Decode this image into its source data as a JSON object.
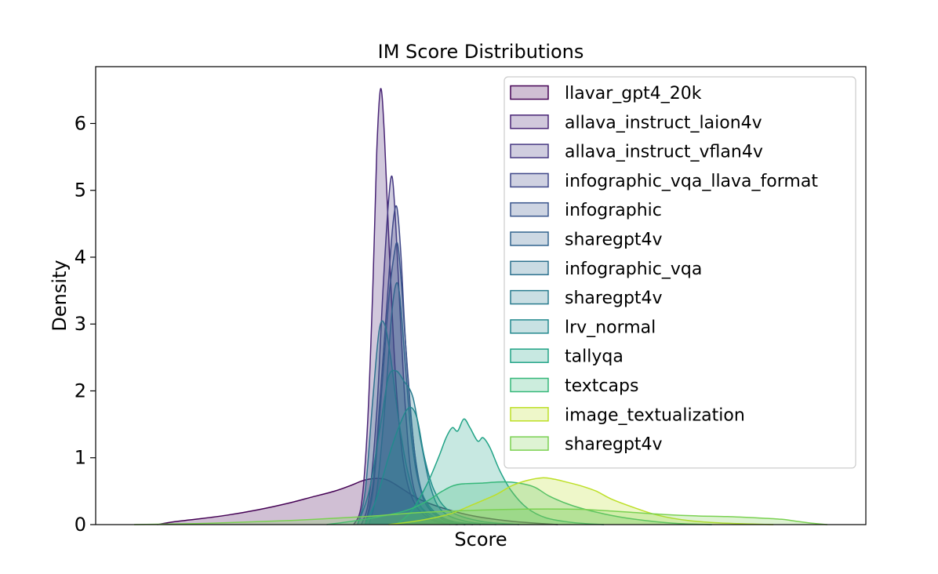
{
  "chart_data": {
    "type": "area",
    "title": "IM Score Distributions",
    "xlabel": "Score",
    "ylabel": "Density",
    "xlim": [
      0,
      100
    ],
    "ylim": [
      0,
      6.85
    ],
    "yticks": [
      0,
      1,
      2,
      3,
      4,
      5,
      6
    ],
    "xticks_visible": false,
    "grid": false,
    "legend_position": "top-right",
    "series": [
      {
        "name": "llavar_gpt4_20k",
        "color": "#440154",
        "points": [
          [
            8,
            0
          ],
          [
            10,
            0.04
          ],
          [
            13,
            0.08
          ],
          [
            17,
            0.14
          ],
          [
            21,
            0.22
          ],
          [
            25,
            0.32
          ],
          [
            28,
            0.41
          ],
          [
            31,
            0.5
          ],
          [
            33,
            0.58
          ],
          [
            34.5,
            0.65
          ],
          [
            35.5,
            0.68
          ],
          [
            36.5,
            0.69
          ],
          [
            37.5,
            0.68
          ],
          [
            38.5,
            0.63
          ],
          [
            40,
            0.52
          ],
          [
            42,
            0.38
          ],
          [
            45,
            0.25
          ],
          [
            49,
            0.13
          ],
          [
            54,
            0.05
          ],
          [
            60,
            0
          ]
        ]
      },
      {
        "name": "allava_instruct_laion4v",
        "color": "#482475",
        "points": [
          [
            33.5,
            0
          ],
          [
            34.5,
            0.3
          ],
          [
            35.3,
            1.5
          ],
          [
            36,
            3.6
          ],
          [
            36.5,
            5.6
          ],
          [
            37,
            6.52
          ],
          [
            37.5,
            5.8
          ],
          [
            38.2,
            3.9
          ],
          [
            39,
            2.1
          ],
          [
            40,
            0.9
          ],
          [
            41.5,
            0.3
          ],
          [
            44,
            0.05
          ],
          [
            47,
            0
          ]
        ]
      },
      {
        "name": "allava_instruct_vflan4v",
        "color": "#453781",
        "points": [
          [
            34.5,
            0
          ],
          [
            35.5,
            0.4
          ],
          [
            36.5,
            1.7
          ],
          [
            37.3,
            3.5
          ],
          [
            38,
            4.8
          ],
          [
            38.5,
            5.2
          ],
          [
            39,
            4.4
          ],
          [
            39.6,
            3.0
          ],
          [
            40.3,
            1.6
          ],
          [
            41.2,
            0.6
          ],
          [
            43,
            0.15
          ],
          [
            46,
            0
          ]
        ]
      },
      {
        "name": "infographic_vqa_llava_format",
        "color": "#3f4788",
        "points": [
          [
            35,
            0
          ],
          [
            36,
            0.6
          ],
          [
            37,
            2.0
          ],
          [
            38,
            3.6
          ],
          [
            38.6,
            4.5
          ],
          [
            39.1,
            4.75
          ],
          [
            39.6,
            4.1
          ],
          [
            40.3,
            2.6
          ],
          [
            41.2,
            1.3
          ],
          [
            42.5,
            0.4
          ],
          [
            45,
            0.08
          ],
          [
            48,
            0
          ]
        ]
      },
      {
        "name": "infographic",
        "color": "#39558c",
        "points": [
          [
            35,
            0
          ],
          [
            36,
            0.5
          ],
          [
            37,
            1.8
          ],
          [
            38,
            3.3
          ],
          [
            38.7,
            4.0
          ],
          [
            39.2,
            4.2
          ],
          [
            39.7,
            3.6
          ],
          [
            40.5,
            2.3
          ],
          [
            41.5,
            1.0
          ],
          [
            43,
            0.3
          ],
          [
            46,
            0.05
          ],
          [
            49,
            0
          ]
        ]
      },
      {
        "name": "sharegpt4v",
        "color": "#32648e",
        "points": [
          [
            35.5,
            0
          ],
          [
            36.5,
            0.5
          ],
          [
            37.5,
            1.7
          ],
          [
            38.4,
            3.1
          ],
          [
            39,
            3.6
          ],
          [
            39.5,
            3.4
          ],
          [
            40.2,
            2.4
          ],
          [
            41,
            1.3
          ],
          [
            42,
            0.6
          ],
          [
            43.5,
            0.25
          ],
          [
            46,
            0.06
          ],
          [
            50,
            0
          ]
        ]
      },
      {
        "name": "infographic_vqa",
        "color": "#2d718e",
        "points": [
          [
            34,
            0
          ],
          [
            35,
            0.5
          ],
          [
            36,
            1.9
          ],
          [
            36.8,
            2.9
          ],
          [
            37.5,
            3.0
          ],
          [
            38.3,
            2.5
          ],
          [
            39.3,
            1.6
          ],
          [
            40.5,
            0.8
          ],
          [
            42,
            0.3
          ],
          [
            45,
            0.05
          ],
          [
            48,
            0
          ]
        ]
      },
      {
        "name": "sharegpt4v",
        "color": "#297b8e",
        "points": [
          [
            34,
            0
          ],
          [
            35.5,
            0.5
          ],
          [
            37,
            1.5
          ],
          [
            38,
            2.2
          ],
          [
            39,
            2.3
          ],
          [
            40,
            2.15
          ],
          [
            41.2,
            1.9
          ],
          [
            42.3,
            1.2
          ],
          [
            43.5,
            0.55
          ],
          [
            45,
            0.2
          ],
          [
            48,
            0.05
          ],
          [
            52,
            0
          ]
        ]
      },
      {
        "name": "lrv_normal",
        "color": "#23898e",
        "points": [
          [
            35,
            0
          ],
          [
            36.5,
            0.4
          ],
          [
            38,
            1.0
          ],
          [
            39.5,
            1.5
          ],
          [
            40.7,
            1.75
          ],
          [
            41.7,
            1.6
          ],
          [
            42.7,
            1.0
          ],
          [
            44,
            0.5
          ],
          [
            46,
            0.2
          ],
          [
            50,
            0.05
          ],
          [
            55,
            0
          ]
        ]
      },
      {
        "name": "tallyqa",
        "color": "#20a386",
        "points": [
          [
            39,
            0
          ],
          [
            41,
            0.2
          ],
          [
            43,
            0.6
          ],
          [
            44.5,
            1.0
          ],
          [
            45.5,
            1.3
          ],
          [
            46.3,
            1.45
          ],
          [
            47,
            1.4
          ],
          [
            47.8,
            1.58
          ],
          [
            48.6,
            1.45
          ],
          [
            49.6,
            1.25
          ],
          [
            50.3,
            1.3
          ],
          [
            51.2,
            1.15
          ],
          [
            52.5,
            0.8
          ],
          [
            54,
            0.5
          ],
          [
            56,
            0.25
          ],
          [
            58.5,
            0.1
          ],
          [
            62,
            0.03
          ],
          [
            66,
            0
          ]
        ]
      },
      {
        "name": "textcaps",
        "color": "#35b779",
        "points": [
          [
            30,
            0
          ],
          [
            35,
            0.08
          ],
          [
            40,
            0.2
          ],
          [
            43,
            0.35
          ],
          [
            45,
            0.5
          ],
          [
            47,
            0.6
          ],
          [
            50,
            0.62
          ],
          [
            53,
            0.64
          ],
          [
            55,
            0.62
          ],
          [
            57,
            0.56
          ],
          [
            59,
            0.42
          ],
          [
            62,
            0.28
          ],
          [
            66,
            0.16
          ],
          [
            70,
            0.08
          ],
          [
            75,
            0.02
          ],
          [
            80,
            0
          ]
        ]
      },
      {
        "name": "image_textualization",
        "color": "#bddf26",
        "points": [
          [
            38,
            0
          ],
          [
            42,
            0.06
          ],
          [
            46,
            0.16
          ],
          [
            49,
            0.3
          ],
          [
            52,
            0.45
          ],
          [
            54,
            0.58
          ],
          [
            56,
            0.66
          ],
          [
            58,
            0.7
          ],
          [
            59.5,
            0.68
          ],
          [
            61,
            0.64
          ],
          [
            63,
            0.58
          ],
          [
            65,
            0.5
          ],
          [
            67,
            0.38
          ],
          [
            70,
            0.25
          ],
          [
            73,
            0.14
          ],
          [
            77,
            0.06
          ],
          [
            82,
            0.02
          ],
          [
            88,
            0
          ]
        ]
      },
      {
        "name": "sharegpt4v",
        "color": "#7ad151",
        "points": [
          [
            5,
            0
          ],
          [
            15,
            0.02
          ],
          [
            25,
            0.06
          ],
          [
            35,
            0.12
          ],
          [
            42,
            0.18
          ],
          [
            48,
            0.21
          ],
          [
            55,
            0.23
          ],
          [
            62,
            0.23
          ],
          [
            66,
            0.21
          ],
          [
            70,
            0.18
          ],
          [
            74,
            0.15
          ],
          [
            78,
            0.13
          ],
          [
            82,
            0.12
          ],
          [
            86,
            0.1
          ],
          [
            89,
            0.08
          ],
          [
            91,
            0.05
          ],
          [
            93,
            0.02
          ],
          [
            95,
            0
          ]
        ]
      }
    ]
  }
}
